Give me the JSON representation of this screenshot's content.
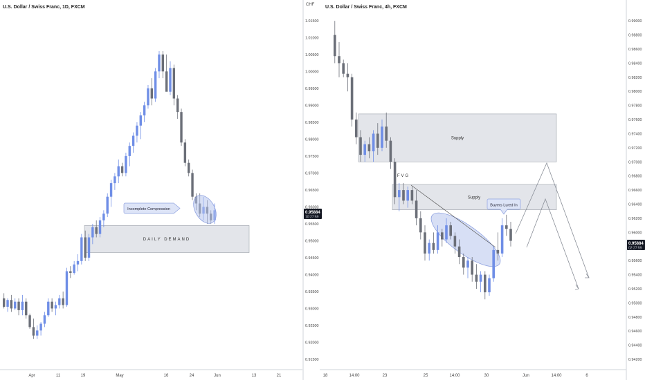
{
  "colors": {
    "bull": "#6f8ee6",
    "bear": "#6b6f78",
    "zone_fill": "#e3e5ea",
    "zone_stroke": "#9ea3ab",
    "ellipse_fill": "#b7c4ec",
    "ellipse_stroke": "#8fa2e0",
    "price_tag": "#131722",
    "axis_line": "#cfd3da",
    "arrow": "#8a8f98"
  },
  "left_chart": {
    "title": "U.S. Dollar / Swiss Franc, 1D, FXCM",
    "x_ticks": [
      "Apr",
      "11",
      "19",
      "May",
      "16",
      "24",
      "Jun",
      "13",
      "21"
    ],
    "daily_demand_label": "DAILY DEMAND",
    "callout_label": "Incomplete Compression"
  },
  "right_chart": {
    "title": "U.S. Dollar / Swiss Franc, 4h, FXCM",
    "currency": "CHF",
    "x_ticks": [
      "18",
      "14:00",
      "23",
      "25",
      "14:00",
      "30",
      "Jun",
      "14:00",
      "6"
    ],
    "supply_upper_label": "Supply",
    "supply_lower_label": "Supply",
    "fvg_label": "FVG",
    "callout_label": "Buyers Lured In",
    "price_tag": {
      "price": "0.95884",
      "countdown": "02:27:59"
    }
  },
  "middle_axis": {
    "tick_labels": [
      "1.01500",
      "1.01000",
      "1.00500",
      "1.00000",
      "0.99500",
      "0.99000",
      "0.98500",
      "0.98000",
      "0.97500",
      "0.97000",
      "0.96500",
      "0.96000",
      "0.95500",
      "0.95000",
      "0.94500",
      "0.94000",
      "0.93500",
      "0.93000",
      "0.92500",
      "0.92000",
      "0.91500"
    ],
    "price_tag": {
      "price": "0.95884",
      "countdown": "10:27:59"
    }
  },
  "right_axis": {
    "tick_labels": [
      "0.99000",
      "0.98800",
      "0.98600",
      "0.98400",
      "0.98200",
      "0.98000",
      "0.97800",
      "0.97600",
      "0.97400",
      "0.97200",
      "0.97000",
      "0.96800",
      "0.96600",
      "0.96400",
      "0.96200",
      "0.96000",
      "0.95800",
      "0.95600",
      "0.95400",
      "0.95200",
      "0.95000",
      "0.94800",
      "0.94600",
      "0.94400",
      "0.94200"
    ]
  },
  "chart_data": [
    {
      "type": "candlestick",
      "title": "U.S. Dollar / Swiss Franc, 1D, FXCM",
      "ylim": [
        0.915,
        1.017
      ],
      "x": [
        "Apr",
        "11",
        "19",
        "May",
        "16",
        "24",
        "Jun",
        "13",
        "21"
      ],
      "ohlc": [
        [
          0.933,
          0.9345,
          0.93,
          0.9305
        ],
        [
          0.9305,
          0.933,
          0.929,
          0.9325
        ],
        [
          0.9325,
          0.934,
          0.929,
          0.93
        ],
        [
          0.93,
          0.933,
          0.9295,
          0.932
        ],
        [
          0.932,
          0.933,
          0.928,
          0.9295
        ],
        [
          0.9295,
          0.934,
          0.928,
          0.932
        ],
        [
          0.932,
          0.933,
          0.927,
          0.928
        ],
        [
          0.928,
          0.9285,
          0.924,
          0.9245
        ],
        [
          0.9245,
          0.927,
          0.921,
          0.922
        ],
        [
          0.922,
          0.925,
          0.921,
          0.9235
        ],
        [
          0.9235,
          0.926,
          0.922,
          0.9255
        ],
        [
          0.9255,
          0.929,
          0.9245,
          0.928
        ],
        [
          0.928,
          0.933,
          0.9275,
          0.932
        ],
        [
          0.932,
          0.933,
          0.929,
          0.93
        ],
        [
          0.93,
          0.932,
          0.928,
          0.931
        ],
        [
          0.931,
          0.934,
          0.93,
          0.933
        ],
        [
          0.933,
          0.935,
          0.93,
          0.931
        ],
        [
          0.931,
          0.942,
          0.9305,
          0.941
        ],
        [
          0.941,
          0.9425,
          0.939,
          0.9405
        ],
        [
          0.9405,
          0.944,
          0.94,
          0.943
        ],
        [
          0.943,
          0.946,
          0.941,
          0.944
        ],
        [
          0.944,
          0.952,
          0.943,
          0.951
        ],
        [
          0.951,
          0.953,
          0.944,
          0.945
        ],
        [
          0.945,
          0.952,
          0.944,
          0.951
        ],
        [
          0.951,
          0.955,
          0.949,
          0.954
        ],
        [
          0.954,
          0.956,
          0.951,
          0.952
        ],
        [
          0.952,
          0.957,
          0.951,
          0.956
        ],
        [
          0.956,
          0.959,
          0.954,
          0.958
        ],
        [
          0.958,
          0.964,
          0.957,
          0.963
        ],
        [
          0.963,
          0.968,
          0.96,
          0.967
        ],
        [
          0.967,
          0.97,
          0.965,
          0.969
        ],
        [
          0.969,
          0.974,
          0.967,
          0.972
        ],
        [
          0.972,
          0.973,
          0.969,
          0.97
        ],
        [
          0.97,
          0.976,
          0.969,
          0.975
        ],
        [
          0.975,
          0.979,
          0.972,
          0.978
        ],
        [
          0.978,
          0.982,
          0.976,
          0.981
        ],
        [
          0.981,
          0.985,
          0.979,
          0.984
        ],
        [
          0.984,
          0.988,
          0.98,
          0.987
        ],
        [
          0.987,
          0.991,
          0.985,
          0.99
        ],
        [
          0.99,
          0.996,
          0.989,
          0.995
        ],
        [
          0.995,
          0.998,
          0.99,
          0.992
        ],
        [
          0.992,
          1.001,
          0.991,
          1.0
        ],
        [
          1.0,
          1.006,
          0.998,
          1.005
        ],
        [
          1.005,
          1.006,
          0.998,
          1.0
        ],
        [
          1.0,
          1.005,
          0.995,
          0.994
        ],
        [
          0.994,
          1.003,
          0.993,
          1.001
        ],
        [
          1.001,
          1.002,
          0.99,
          0.992
        ],
        [
          0.992,
          0.993,
          0.986,
          0.988
        ],
        [
          0.988,
          0.989,
          0.978,
          0.979
        ],
        [
          0.979,
          0.98,
          0.972,
          0.973
        ],
        [
          0.973,
          0.974,
          0.969,
          0.97
        ],
        [
          0.97,
          0.971,
          0.962,
          0.963
        ],
        [
          0.963,
          0.964,
          0.959,
          0.961
        ],
        [
          0.961,
          0.964,
          0.957,
          0.958
        ],
        [
          0.958,
          0.963,
          0.956,
          0.96
        ],
        [
          0.96,
          0.962,
          0.955,
          0.958
        ],
        [
          0.958,
          0.959,
          0.955,
          0.956
        ],
        [
          0.956,
          0.961,
          0.955,
          0.959
        ]
      ],
      "annotations": [
        {
          "text": "DAILY DEMAND",
          "type": "zone",
          "y_range": [
            0.9465,
            0.9545
          ]
        },
        {
          "text": "Incomplete Compression",
          "type": "callout"
        }
      ]
    },
    {
      "type": "candlestick",
      "title": "U.S. Dollar / Swiss Franc, 4h, FXCM",
      "ylim": [
        0.942,
        0.991
      ],
      "x": [
        "18",
        "14:00",
        "23",
        "25",
        "14:00",
        "30",
        "Jun",
        "14:00",
        "6"
      ],
      "ohlc": [
        [
          0.988,
          0.99,
          0.984,
          0.985
        ],
        [
          0.985,
          0.987,
          0.982,
          0.984
        ],
        [
          0.984,
          0.9845,
          0.982,
          0.9825
        ],
        [
          0.9825,
          0.984,
          0.98,
          0.982
        ],
        [
          0.982,
          0.9825,
          0.975,
          0.976
        ],
        [
          0.976,
          0.977,
          0.9725,
          0.9735
        ],
        [
          0.9735,
          0.9745,
          0.97,
          0.971
        ],
        [
          0.971,
          0.973,
          0.97,
          0.9725
        ],
        [
          0.9725,
          0.9735,
          0.9705,
          0.9715
        ],
        [
          0.9715,
          0.9745,
          0.97,
          0.974
        ],
        [
          0.974,
          0.9755,
          0.971,
          0.972
        ],
        [
          0.972,
          0.976,
          0.9715,
          0.975
        ],
        [
          0.975,
          0.977,
          0.972,
          0.973
        ],
        [
          0.973,
          0.9735,
          0.969,
          0.97
        ],
        [
          0.97,
          0.9705,
          0.964,
          0.965
        ],
        [
          0.965,
          0.967,
          0.963,
          0.966
        ],
        [
          0.966,
          0.967,
          0.964,
          0.9645
        ],
        [
          0.9645,
          0.9665,
          0.9635,
          0.966
        ],
        [
          0.966,
          0.9665,
          0.964,
          0.9645
        ],
        [
          0.9645,
          0.966,
          0.961,
          0.962
        ],
        [
          0.962,
          0.963,
          0.959,
          0.96
        ],
        [
          0.96,
          0.961,
          0.956,
          0.957
        ],
        [
          0.957,
          0.959,
          0.956,
          0.9585
        ],
        [
          0.9585,
          0.96,
          0.957,
          0.9575
        ],
        [
          0.9575,
          0.961,
          0.957,
          0.96
        ],
        [
          0.96,
          0.9605,
          0.958,
          0.959
        ],
        [
          0.959,
          0.962,
          0.9585,
          0.961
        ],
        [
          0.961,
          0.9615,
          0.959,
          0.9595
        ],
        [
          0.9595,
          0.96,
          0.957,
          0.958
        ],
        [
          0.958,
          0.959,
          0.9555,
          0.9565
        ],
        [
          0.9565,
          0.957,
          0.954,
          0.955
        ],
        [
          0.955,
          0.9565,
          0.9535,
          0.956
        ],
        [
          0.956,
          0.9565,
          0.953,
          0.954
        ],
        [
          0.954,
          0.9555,
          0.952,
          0.953
        ],
        [
          0.953,
          0.9545,
          0.9515,
          0.954
        ],
        [
          0.954,
          0.9545,
          0.9505,
          0.9515
        ],
        [
          0.9515,
          0.954,
          0.951,
          0.9535
        ],
        [
          0.9535,
          0.958,
          0.953,
          0.9575
        ],
        [
          0.9575,
          0.96,
          0.956,
          0.957
        ],
        [
          0.957,
          0.962,
          0.9565,
          0.961
        ],
        [
          0.961,
          0.9625,
          0.9595,
          0.9605
        ],
        [
          0.9605,
          0.9615,
          0.958,
          0.9588
        ]
      ],
      "annotations": [
        {
          "text": "Supply",
          "type": "zone",
          "y_range": [
            0.97,
            0.9768
          ]
        },
        {
          "text": "Supply",
          "type": "zone",
          "y_range": [
            0.9632,
            0.9668
          ]
        },
        {
          "text": "FVG",
          "type": "label"
        },
        {
          "text": "Buyers Lured In",
          "type": "callout"
        }
      ]
    }
  ]
}
